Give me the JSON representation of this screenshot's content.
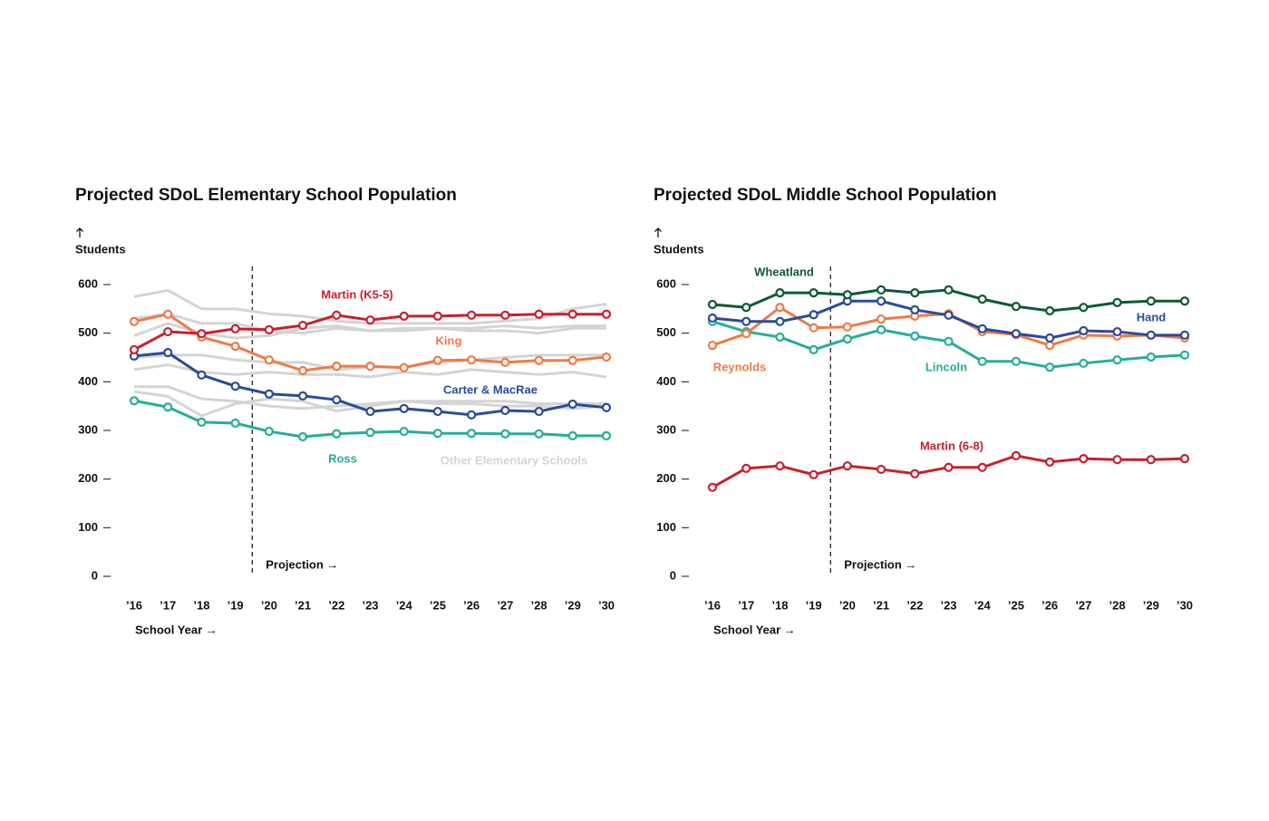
{
  "chart_data": [
    {
      "type": "line",
      "title": "Projected SDoL Elementary School Population",
      "y_label": "Students",
      "x_label": "School Year →",
      "annotation": "Projection →",
      "categories": [
        "’16",
        "’17",
        "’18",
        "’19",
        "’20",
        "’21",
        "’22",
        "’23",
        "’24",
        "’25",
        "’26",
        "’27",
        "’28",
        "’29",
        "’30"
      ],
      "ylim": [
        0,
        600
      ],
      "yticks": [
        0,
        100,
        200,
        300,
        400,
        500,
        600
      ],
      "series": [
        {
          "name": "Other Elementary Schools",
          "color": "#d4d4d4",
          "markers": false,
          "values": [
            575,
            588,
            550,
            550,
            540,
            535,
            525,
            520,
            520,
            520,
            520,
            525,
            530,
            550,
            560
          ]
        },
        {
          "color": "#d4d4d4",
          "markers": false,
          "values": [
            530,
            540,
            520,
            520,
            505,
            500,
            510,
            505,
            510,
            510,
            510,
            515,
            510,
            515,
            515
          ]
        },
        {
          "color": "#d4d4d4",
          "markers": false,
          "values": [
            495,
            520,
            500,
            490,
            495,
            510,
            515,
            505,
            505,
            510,
            505,
            505,
            500,
            510,
            510
          ]
        },
        {
          "color": "#d4d4d4",
          "markers": false,
          "values": [
            450,
            455,
            455,
            445,
            440,
            440,
            425,
            430,
            430,
            440,
            445,
            450,
            455,
            455,
            455
          ]
        },
        {
          "color": "#d4d4d4",
          "markers": false,
          "values": [
            425,
            435,
            420,
            415,
            420,
            415,
            415,
            410,
            420,
            415,
            425,
            420,
            415,
            420,
            410
          ]
        },
        {
          "color": "#d4d4d4",
          "markers": false,
          "values": [
            390,
            390,
            365,
            360,
            350,
            345,
            350,
            355,
            360,
            360,
            360,
            360,
            355,
            355,
            355
          ]
        },
        {
          "color": "#d4d4d4",
          "markers": false,
          "values": [
            380,
            370,
            330,
            355,
            365,
            360,
            340,
            350,
            360,
            355,
            355,
            350,
            350,
            345,
            350
          ]
        },
        {
          "name": "Ross",
          "color": "#26ad9a",
          "markers": true,
          "values": [
            361,
            348,
            317,
            315,
            298,
            287,
            293,
            296,
            298,
            294,
            294,
            293,
            293,
            289,
            289
          ]
        },
        {
          "name": "Carter & MacRae",
          "color": "#2b4a9a",
          "markers": true,
          "values": [
            453,
            460,
            414,
            391,
            375,
            371,
            363,
            339,
            345,
            339,
            332,
            341,
            339,
            354,
            347
          ]
        },
        {
          "name": "King",
          "color": "#f07a45",
          "markers": true,
          "values": [
            524,
            539,
            492,
            473,
            445,
            423,
            432,
            432,
            429,
            444,
            445,
            440,
            444,
            444,
            451
          ]
        },
        {
          "name": "Martin (K5-5)",
          "color": "#c8202f",
          "markers": true,
          "values": [
            466,
            503,
            499,
            509,
            507,
            516,
            537,
            527,
            535,
            535,
            537,
            537,
            539,
            539,
            539
          ]
        }
      ]
    },
    {
      "type": "line",
      "title": "Projected SDoL Middle School Population",
      "y_label": "Students",
      "x_label": "School Year →",
      "annotation": "Projection →",
      "categories": [
        "’16",
        "’17",
        "’18",
        "’19",
        "’20",
        "’21",
        "’22",
        "’23",
        "’24",
        "’25",
        "’26",
        "’27",
        "’28",
        "’29",
        "’30"
      ],
      "ylim": [
        0,
        600
      ],
      "yticks": [
        0,
        100,
        200,
        300,
        400,
        500,
        600
      ],
      "series": [
        {
          "name": "Martin (6-8)",
          "color": "#c8202f",
          "markers": true,
          "values": [
            183,
            222,
            227,
            209,
            227,
            220,
            211,
            224,
            224,
            248,
            235,
            242,
            240,
            240,
            242
          ]
        },
        {
          "name": "Lincoln",
          "color": "#26ad9a",
          "markers": true,
          "values": [
            524,
            503,
            492,
            466,
            488,
            507,
            494,
            483,
            442,
            442,
            430,
            438,
            445,
            451,
            455
          ]
        },
        {
          "name": "Reynolds",
          "color": "#f07a45",
          "markers": true,
          "values": [
            475,
            499,
            553,
            511,
            513,
            529,
            535,
            540,
            503,
            497,
            475,
            496,
            494,
            496,
            490
          ]
        },
        {
          "name": "Hand",
          "color": "#2b4a9a",
          "markers": true,
          "values": [
            531,
            524,
            524,
            538,
            566,
            566,
            548,
            537,
            509,
            499,
            490,
            505,
            503,
            496,
            496
          ]
        },
        {
          "name": "Wheatland",
          "color": "#0e5a34",
          "markers": true,
          "values": [
            559,
            553,
            583,
            583,
            579,
            589,
            583,
            589,
            570,
            555,
            546,
            553,
            563,
            566,
            566
          ]
        }
      ]
    }
  ]
}
